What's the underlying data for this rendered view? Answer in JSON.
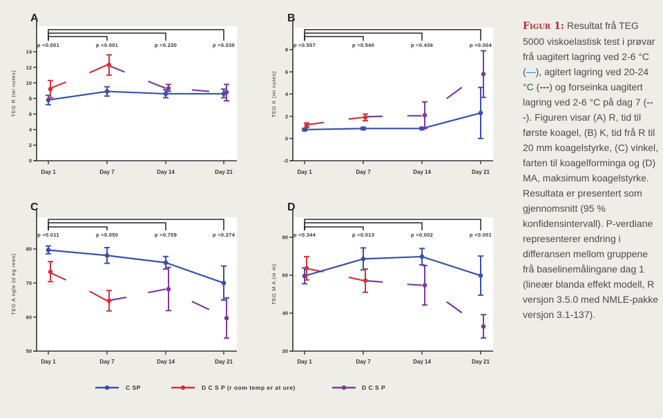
{
  "caption": {
    "label": "Figur 1:",
    "text_parts": [
      " Resultat frå TEG 5000 viskoelastisk test i prøvar frå uagitert lagring ved 2-6 °C (",
      "—",
      "), agitert lagring ved 20-24 °C (",
      "---",
      ") og forseinka uagitert lagring ved 2-6 °C på dag 7 (",
      "---",
      "). Figuren visar (A) R, tid til første koagel, (B) K, tid frå R til 20 mm koagelstyrke, (C) vinkel, farten til koagelforminga og (D) MA, maksimum koagelstyrke. Resultata er presentert som gjennomsnitt (95 % konfidensintervall). P-verdiane representerer endring i differansen mellom gruppene frå baselinemålingane dag 1 (lineær blanda effekt modell, R versjon 3.5.0 med NMLE-pakke versjon 3.1-137)."
    ]
  },
  "colors": {
    "CSP": "#3a4fa8",
    "DCSP_room": "#d2323a",
    "DCSP": "#7a3a9a",
    "axis": "#333333",
    "caption_accent": "#c0262c"
  },
  "legend": [
    {
      "key": "CSP",
      "label": "C SP"
    },
    {
      "key": "DCSP_room",
      "label": "D C S P  (r oom  temp er at ure)"
    },
    {
      "key": "DCSP",
      "label": "D C S P"
    }
  ],
  "chart_data": [
    {
      "id": "A",
      "type": "line",
      "panel_label": "A",
      "ylabel": "TEG R  (mi nutes)",
      "xlabel": "",
      "categories": [
        "Day 1",
        "Day 7",
        "Day 14",
        "Day 21"
      ],
      "ylim": [
        0,
        14
      ],
      "yticks": [
        0,
        2,
        4,
        6,
        8,
        10,
        12,
        14
      ],
      "p_values": [
        "p <0.001",
        "p <0.001",
        "p =0.230",
        "p =0.030"
      ],
      "series": [
        {
          "name": "CSP",
          "key": "CSP",
          "values": [
            7.8,
            8.9,
            8.6,
            8.6
          ],
          "ci_low": [
            7.2,
            8.3,
            8.1,
            8.1
          ],
          "ci_high": [
            8.4,
            9.5,
            9.1,
            9.2
          ]
        },
        {
          "name": "DCSP (room temperature)",
          "key": "DCSP_room",
          "values": [
            9.2,
            12.3,
            null,
            null
          ],
          "ci_low": [
            8.1,
            11.0,
            null,
            null
          ],
          "ci_high": [
            10.3,
            13.6,
            null,
            null
          ]
        },
        {
          "name": "DCSP",
          "key": "DCSP",
          "values": [
            null,
            null,
            9.3,
            8.8
          ],
          "ci_low": [
            null,
            null,
            8.9,
            7.7
          ],
          "ci_high": [
            null,
            null,
            9.8,
            9.8
          ]
        }
      ],
      "dashed_segments": [
        {
          "key": "DCSP_room",
          "from": [
            0,
            9.2
          ],
          "to": [
            0.3,
            10.1
          ]
        },
        {
          "key": "DCSP_room",
          "from": [
            0.7,
            11.3
          ],
          "to": [
            1,
            12.3
          ]
        },
        {
          "key": "DCSP",
          "from": [
            1,
            12.3
          ],
          "to": [
            1.3,
            11.4
          ]
        },
        {
          "key": "DCSP",
          "from": [
            1.7,
            10.2
          ],
          "to": [
            2,
            9.3
          ]
        },
        {
          "key": "DCSP",
          "from": [
            2.45,
            9.1
          ],
          "to": [
            2.75,
            8.9
          ]
        }
      ]
    },
    {
      "id": "B",
      "type": "line",
      "panel_label": "B",
      "ylabel": "TEG K  (mi nutes)",
      "xlabel": "",
      "categories": [
        "Day 1",
        "Day 7",
        "Day 14",
        "Day 21"
      ],
      "ylim": [
        -2,
        8
      ],
      "yticks": [
        -2,
        0,
        2,
        4,
        6,
        8
      ],
      "p_values": [
        "p =0.557",
        "p =0.540",
        "p =0.436",
        "p =0.004"
      ],
      "series": [
        {
          "name": "CSP",
          "key": "CSP",
          "values": [
            0.8,
            0.9,
            0.9,
            2.3
          ],
          "ci_low": [
            0.7,
            0.8,
            0.8,
            0.0
          ],
          "ci_high": [
            0.9,
            1.0,
            1.0,
            4.6
          ]
        },
        {
          "name": "DCSP (room temperature)",
          "key": "DCSP_room",
          "values": [
            1.2,
            1.9,
            null,
            null
          ],
          "ci_low": [
            1.0,
            1.6,
            null,
            null
          ],
          "ci_high": [
            1.4,
            2.2,
            null,
            null
          ]
        },
        {
          "name": "DCSP",
          "key": "DCSP",
          "values": [
            null,
            null,
            2.1,
            5.8
          ],
          "ci_low": [
            null,
            null,
            0.9,
            3.7
          ],
          "ci_high": [
            null,
            null,
            3.3,
            7.9
          ]
        }
      ],
      "dashed_segments": [
        {
          "key": "DCSP_room",
          "from": [
            0,
            1.2
          ],
          "to": [
            0.33,
            1.45
          ]
        },
        {
          "key": "DCSP_room",
          "from": [
            0.75,
            1.75
          ],
          "to": [
            1,
            1.9
          ]
        },
        {
          "key": "DCSP",
          "from": [
            1,
            1.95
          ],
          "to": [
            1.33,
            2.0
          ]
        },
        {
          "key": "DCSP",
          "from": [
            1.75,
            2.05
          ],
          "to": [
            2,
            2.05
          ]
        },
        {
          "key": "DCSP",
          "from": [
            2.42,
            3.6
          ],
          "to": [
            2.68,
            4.6
          ]
        }
      ]
    },
    {
      "id": "C",
      "type": "line",
      "panel_label": "C",
      "ylabel": "TEG A ngle  (d eg rees)",
      "xlabel": "",
      "categories": [
        "Day 1",
        "Day 7",
        "Day 14",
        "Day 21"
      ],
      "ylim": [
        50,
        80
      ],
      "yticks": [
        50,
        60,
        70,
        80
      ],
      "p_values": [
        "p =0.011",
        "p =0.050",
        "p =0.709",
        "p =0.274"
      ],
      "series": [
        {
          "name": "CSP",
          "key": "CSP",
          "values": [
            79.7,
            78.1,
            76.0,
            70.0
          ],
          "ci_low": [
            78.6,
            75.8,
            74.1,
            65.0
          ],
          "ci_high": [
            80.9,
            80.4,
            77.8,
            75.0
          ]
        },
        {
          "name": "DCSP (room temperature)",
          "key": "DCSP_room",
          "values": [
            73.3,
            64.8,
            null,
            null
          ],
          "ci_low": [
            70.4,
            61.8,
            null,
            null
          ],
          "ci_high": [
            76.3,
            67.8,
            null,
            null
          ]
        },
        {
          "name": "DCSP",
          "key": "DCSP",
          "values": [
            null,
            null,
            68.2,
            59.7
          ],
          "ci_low": [
            null,
            null,
            61.9,
            53.8
          ],
          "ci_high": [
            null,
            null,
            74.6,
            65.6
          ]
        }
      ],
      "dashed_segments": [
        {
          "key": "DCSP_room",
          "from": [
            0,
            73.3
          ],
          "to": [
            0.3,
            70.9
          ]
        },
        {
          "key": "DCSP_room",
          "from": [
            0.7,
            67.6
          ],
          "to": [
            1,
            64.8
          ]
        },
        {
          "key": "DCSP",
          "from": [
            1,
            64.8
          ],
          "to": [
            1.33,
            65.8
          ]
        },
        {
          "key": "DCSP",
          "from": [
            1.7,
            67.2
          ],
          "to": [
            2,
            68.2
          ]
        },
        {
          "key": "DCSP",
          "from": [
            2.45,
            64.6
          ],
          "to": [
            2.75,
            62.2
          ]
        }
      ]
    },
    {
      "id": "D",
      "type": "line",
      "panel_label": "D",
      "ylabel": "TEG M A  (m m)",
      "xlabel": "",
      "categories": [
        "Day 1",
        "Day 7",
        "Day 14",
        "Day 21"
      ],
      "ylim": [
        20,
        80
      ],
      "yticks": [
        20,
        40,
        60,
        80
      ],
      "p_values": [
        "p =0.344",
        "p =0.013",
        "p =0.002",
        "p <0.001"
      ],
      "series": [
        {
          "name": "CSP",
          "key": "CSP",
          "values": [
            59.6,
            68.6,
            69.8,
            59.8
          ],
          "ci_low": [
            55.5,
            62.8,
            65.5,
            49.5
          ],
          "ci_high": [
            63.8,
            74.4,
            74.1,
            70.1
          ]
        },
        {
          "name": "DCSP (room temperature)",
          "key": "DCSP_room",
          "values": [
            63.7,
            57.2,
            null,
            null
          ],
          "ci_low": [
            57.5,
            51.0,
            null,
            null
          ],
          "ci_high": [
            69.8,
            63.3,
            null,
            null
          ]
        },
        {
          "name": "DCSP",
          "key": "DCSP",
          "values": [
            null,
            null,
            54.7,
            33.0
          ],
          "ci_low": [
            null,
            null,
            44.3,
            26.9
          ],
          "ci_high": [
            null,
            null,
            65.1,
            39.2
          ]
        }
      ],
      "dashed_segments": [
        {
          "key": "DCSP_room",
          "from": [
            0,
            63.7
          ],
          "to": [
            0.32,
            61.8
          ]
        },
        {
          "key": "DCSP_room",
          "from": [
            0.75,
            58.9
          ],
          "to": [
            1,
            57.2
          ]
        },
        {
          "key": "DCSP",
          "from": [
            1,
            57.2
          ],
          "to": [
            1.33,
            56.4
          ]
        },
        {
          "key": "DCSP",
          "from": [
            1.75,
            55.2
          ],
          "to": [
            2,
            54.7
          ]
        },
        {
          "key": "DCSP",
          "from": [
            2.42,
            46.0
          ],
          "to": [
            2.68,
            40.2
          ]
        }
      ]
    }
  ]
}
